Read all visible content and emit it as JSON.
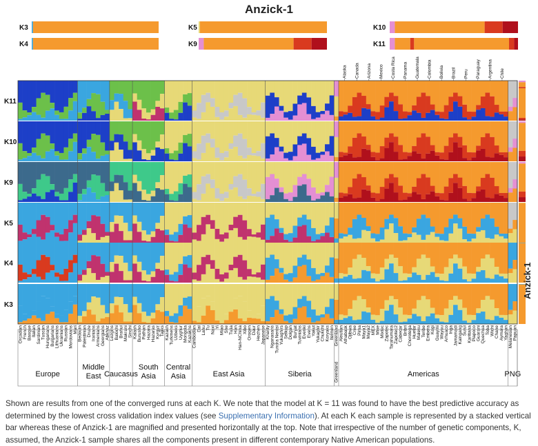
{
  "chart_data": {
    "type": "stacked-bar",
    "title": "Anzick-1",
    "inset_rows": {
      "left": [
        "K3",
        "K4"
      ],
      "middle": [
        "K5",
        "K9"
      ],
      "right": [
        "K10",
        "K11"
      ]
    },
    "rows": [
      "K11",
      "K10",
      "K9",
      "K5",
      "K4",
      "K3"
    ],
    "side_label": "Anzick-1",
    "colors": {
      "c_blue": "#3aa6e0",
      "c_dblue": "#1d3fc8",
      "c_green": "#6cc04a",
      "c_teal": "#3c6a8c",
      "c_mint": "#3ec98a",
      "c_yellow": "#e7d977",
      "c_orange": "#f59a2e",
      "c_red": "#d93a1f",
      "c_dred": "#b0101c",
      "c_pink": "#e48fd3",
      "c_magenta": "#c0336e",
      "c_gray": "#c8c8c8"
    },
    "anzick_inset": {
      "K3": [
        {
          "color": "c_blue",
          "value": 1
        },
        {
          "color": "c_orange",
          "value": 99
        }
      ],
      "K4": [
        {
          "color": "c_blue",
          "value": 1
        },
        {
          "color": "c_orange",
          "value": 99
        }
      ],
      "K5": [
        {
          "color": "c_yellow",
          "value": 1
        },
        {
          "color": "c_orange",
          "value": 99
        }
      ],
      "K9": [
        {
          "color": "c_pink",
          "value": 4
        },
        {
          "color": "c_orange",
          "value": 70
        },
        {
          "color": "c_red",
          "value": 14
        },
        {
          "color": "c_dred",
          "value": 12
        }
      ],
      "K10": [
        {
          "color": "c_pink",
          "value": 4
        },
        {
          "color": "c_orange",
          "value": 70
        },
        {
          "color": "c_red",
          "value": 14
        },
        {
          "color": "c_dred",
          "value": 12
        }
      ],
      "K11": [
        {
          "color": "c_pink",
          "value": 4
        },
        {
          "color": "c_orange",
          "value": 12
        },
        {
          "color": "c_red",
          "value": 3
        },
        {
          "color": "c_orange",
          "value": 74
        },
        {
          "color": "c_red",
          "value": 4
        },
        {
          "color": "c_dred",
          "value": 3
        }
      ]
    },
    "groups": [
      {
        "name": "Europe",
        "samples": [
          "Orcadian",
          "French",
          "Basque",
          "Italian",
          "Sardinian",
          "Tuscan",
          "Hungarians",
          "Bulgarians",
          "Lithuanians",
          "Ukrainians",
          "Russian",
          "Mordovians",
          "Mari"
        ]
      },
      {
        "name": "Middle East",
        "samples": [
          "Bedouin",
          "Palestinian",
          "Druze",
          "Iranians",
          "Armenians",
          "Georgians",
          "Abkhaz"
        ]
      },
      {
        "name": "Caucasus",
        "samples": [
          "Lezgins",
          "Balochi",
          "Brahui",
          "Makrani",
          "Sindhi"
        ]
      },
      {
        "name": "South Asia",
        "samples": [
          "Kalash",
          "Burusho",
          "Pathan",
          "Hazara",
          "Hazaras",
          "Kyrgyz",
          "Tajiks"
        ]
      },
      {
        "name": "Central Asia",
        "samples": [
          "Kazakh",
          "Turkmens",
          "Uzbeks",
          "Uyghur",
          "Mongola",
          "Kazakhs"
        ]
      },
      {
        "name": "East Asia",
        "samples": [
          "Cambodian",
          "Dai",
          "Lahu",
          "Tu",
          "Naxi",
          "Yi",
          "Miao",
          "She",
          "Tujia",
          "Han",
          "Han-NChina",
          "Xibo",
          "Oroqen",
          "Daur",
          "Hezhen",
          "Japanese"
        ]
      },
      {
        "name": "Siberia",
        "samples": [
          "Khanty",
          "Nganasans",
          "Tundra Nentsi",
          "Yukaghirs",
          "Selkup",
          "Dolgan",
          "Buryat",
          "Tuvinians",
          "Evenki",
          "Evens",
          "Yakut",
          "Yukaghir",
          "Chukchi",
          "Koryaks",
          "Itelmen"
        ]
      },
      {
        "name": "Greenland",
        "samples": [
          "Greenland"
        ]
      },
      {
        "name": "Americas",
        "samples": [
          "Aleutian",
          "Athabask",
          "Ojibwa",
          "Cree",
          "Pima",
          "Maya1",
          "Maya2",
          "MEX",
          "Mixe",
          "Mixtec",
          "Zapotec",
          "Tarahumara",
          "Zapotec2",
          "Cabecar",
          "Bribri",
          "Chorotega",
          "Huetar",
          "Maleku",
          "Teribe",
          "Embera",
          "Kogi",
          "Guaymi",
          "Wayuu",
          "Arhuaco",
          "Inga",
          "Jamamadi",
          "Kaingang",
          "Surui",
          "Karitiana",
          "Piapoco",
          "Guarani",
          "Quechua",
          "Toba",
          "Wichi",
          "Chane",
          "Aymara",
          "Yaghan"
        ]
      },
      {
        "name": "PNG",
        "samples": [
          "Melanesian",
          "Papuan"
        ]
      }
    ],
    "top_country_labels": [
      "Alaska",
      "Canada",
      "Arizona",
      "Mexico",
      "Costa Rica",
      "Panama",
      "Guatemala",
      "Colombia",
      "Bolivia",
      "Brazil",
      "Peru",
      "Paraguay",
      "Argentina",
      "Chile"
    ]
  },
  "caption": {
    "text_before": "Shown are results from one of the converged runs at each K. We note that the model at K = 11 was found to have the best predictive accuracy as determined by the lowest cross validation index values (see ",
    "link": "Supplementary Information",
    "text_after": "). At each K each sample is represented by a stacked vertical bar whereas these of Anzick-1 are magnified and presented horizontally at the top. Note that irrespective of the number of genetic components, K, assumed, the Anzick-1 sample shares all the components present in different contemporary Native American populations."
  }
}
